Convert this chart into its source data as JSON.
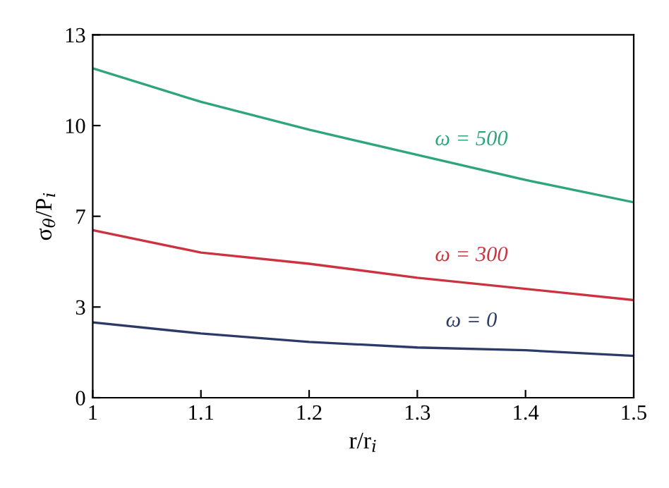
{
  "chart_data": {
    "type": "line",
    "xlabel": "r/r$_{i}$",
    "ylabel": "σ$_{θ}$/P$_{i}$",
    "x": [
      1.0,
      1.1,
      1.2,
      1.3,
      1.4,
      1.5
    ],
    "series": [
      {
        "name": "ω = 500",
        "color": "#2ea57a",
        "values": [
          11.8,
          10.6,
          9.6,
          8.7,
          7.8,
          7.0
        ]
      },
      {
        "name": "ω = 300",
        "color": "#cc3340",
        "values": [
          6.0,
          5.2,
          4.8,
          4.3,
          3.9,
          3.5
        ]
      },
      {
        "name": "ω = 0",
        "color": "#2b3a66",
        "values": [
          2.7,
          2.3,
          2.0,
          1.8,
          1.7,
          1.5
        ]
      }
    ],
    "xlim": [
      1,
      1.5
    ],
    "xticks": [
      1,
      1.1,
      1.2,
      1.3,
      1.4,
      1.5
    ],
    "ylim": [
      0,
      13
    ],
    "yticks": [
      0,
      {
        "value": 3.25,
        "label": "3"
      },
      {
        "value": 6.5,
        "label": "7"
      },
      {
        "value": 9.75,
        "label": "10"
      },
      13
    ],
    "grid": false,
    "legend": false,
    "marker": "none",
    "line_style": "solid"
  }
}
